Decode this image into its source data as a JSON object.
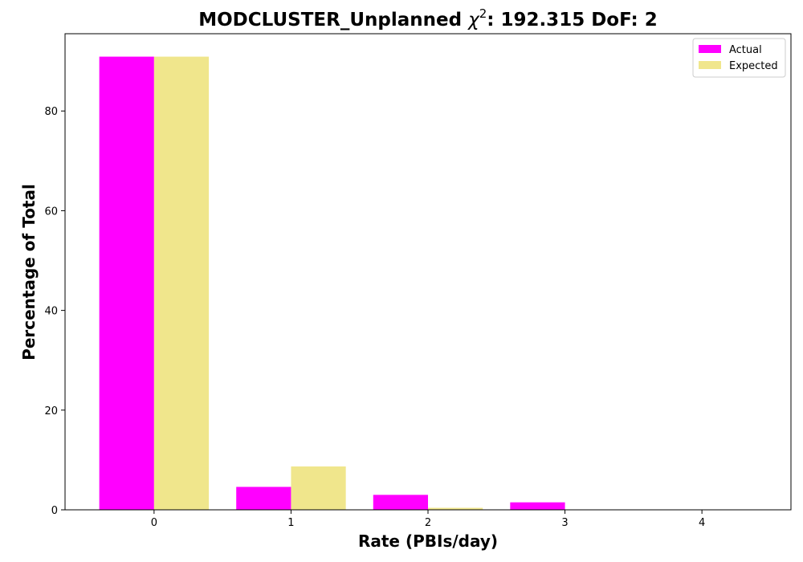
{
  "chart_data": {
    "type": "bar",
    "title_prefix": "MODCLUSTER_Unplanned ",
    "title_symbol": "χ",
    "title_superscript": "2",
    "title_suffix": ": 192.315 DoF: 2",
    "xlabel": "Rate (PBIs/day)",
    "ylabel": "Percentage of Total",
    "categories": [
      "0",
      "1",
      "2",
      "3",
      "4"
    ],
    "x": [
      0,
      1,
      2,
      3,
      4
    ],
    "series": [
      {
        "name": "Actual",
        "color": "#ff00ff",
        "values": [
          90.9,
          4.6,
          3.0,
          1.5,
          0.0
        ]
      },
      {
        "name": "Expected",
        "color": "#f0e68c",
        "values": [
          90.9,
          8.7,
          0.4,
          0.0,
          0.0
        ]
      }
    ],
    "xlim": [
      -0.65,
      4.65
    ],
    "ylim": [
      0,
      95.5
    ],
    "yticks": [
      0,
      20,
      40,
      60,
      80
    ],
    "grid": false,
    "legend_position": "top-right"
  }
}
